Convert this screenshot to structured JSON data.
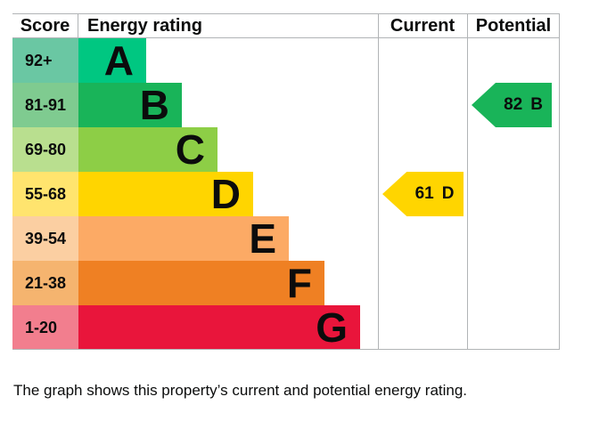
{
  "header": {
    "score": "Score",
    "energy_rating": "Energy rating",
    "current": "Current",
    "potential": "Potential"
  },
  "chart_data": {
    "type": "bar",
    "title": "Energy efficiency rating chart (EPC)",
    "legend_position": "none",
    "bands": [
      {
        "letter": "A",
        "score_range": "92+",
        "bar_color": "#00c781",
        "score_cell_color": "#6ac7a3"
      },
      {
        "letter": "B",
        "score_range": "81-91",
        "bar_color": "#19b459",
        "score_cell_color": "#7fcb90"
      },
      {
        "letter": "C",
        "score_range": "69-80",
        "bar_color": "#8dce46",
        "score_cell_color": "#b9df8f"
      },
      {
        "letter": "D",
        "score_range": "55-68",
        "bar_color": "#ffd500",
        "score_cell_color": "#ffe46e"
      },
      {
        "letter": "E",
        "score_range": "39-54",
        "bar_color": "#fcaa65",
        "score_cell_color": "#fbcfa2"
      },
      {
        "letter": "F",
        "score_range": "21-38",
        "bar_color": "#ef8023",
        "score_cell_color": "#f5b46f"
      },
      {
        "letter": "G",
        "score_range": "1-20",
        "bar_color": "#e9153b",
        "score_cell_color": "#f27e8e"
      }
    ],
    "current": {
      "value": "61",
      "band": "D",
      "arrow_color": "#ffd500"
    },
    "potential": {
      "value": "82",
      "band": "B",
      "arrow_color": "#19b459"
    }
  },
  "caption": "The graph shows this property’s current and potential energy rating.",
  "colors": {
    "border": "#b1b4b6",
    "text": "#0b0c0c"
  }
}
